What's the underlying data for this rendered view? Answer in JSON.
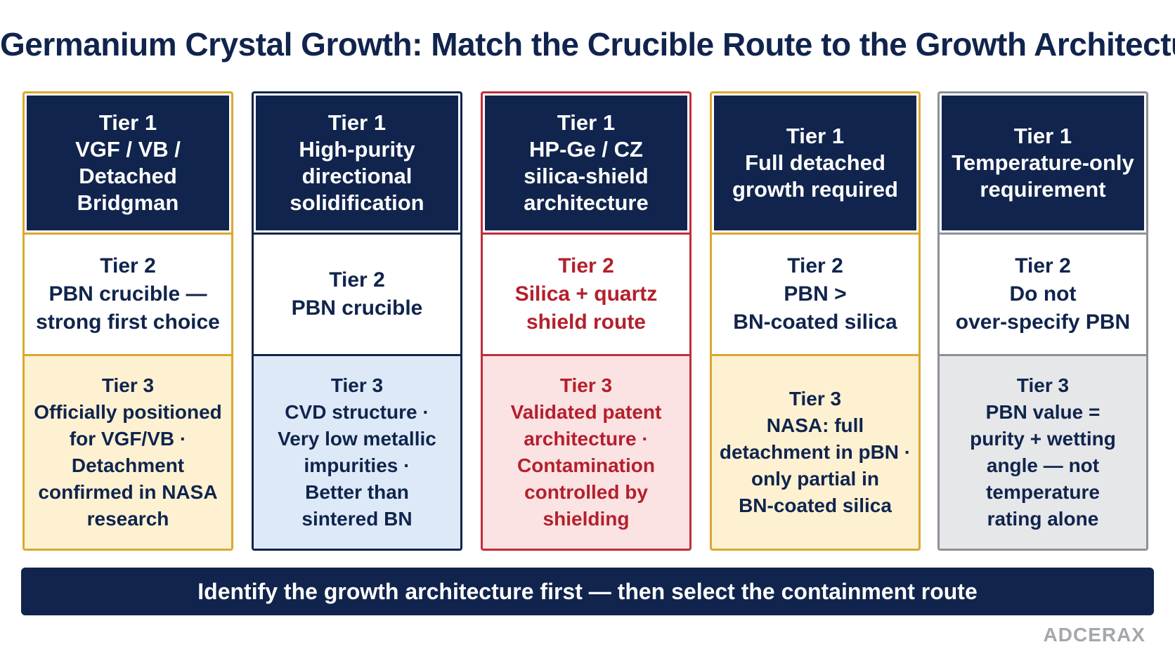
{
  "title": "Germanium Crystal Growth: Match the Crucible Route to the Growth Architecture",
  "columns": [
    {
      "tier1": {
        "heading": "Tier 1",
        "body": "VGF / VB /\nDetached Bridgman"
      },
      "tier2": {
        "heading": "Tier 2",
        "body": "PBN crucible —\nstrong first choice"
      },
      "tier3": {
        "heading": "Tier 3",
        "body": "Officially positioned\nfor VGF/VB ·\nDetachment\nconfirmed in NASA\nresearch"
      }
    },
    {
      "tier1": {
        "heading": "Tier 1",
        "body": "High-purity\ndirectional\nsolidification"
      },
      "tier2": {
        "heading": "Tier 2",
        "body": "PBN crucible"
      },
      "tier3": {
        "heading": "Tier 3",
        "body": "CVD structure ·\nVery low metallic\nimpurities ·\nBetter than\nsintered BN"
      }
    },
    {
      "tier1": {
        "heading": "Tier 1",
        "body": "HP-Ge / CZ\nsilica-shield\narchitecture"
      },
      "tier2": {
        "heading": "Tier 2",
        "body": "Silica + quartz\nshield route"
      },
      "tier3": {
        "heading": "Tier 3",
        "body": "Validated patent\narchitecture ·\nContamination\ncontrolled by\nshielding"
      }
    },
    {
      "tier1": {
        "heading": "Tier 1",
        "body": "Full detached\ngrowth required"
      },
      "tier2": {
        "heading": "Tier 2",
        "body": "PBN >\nBN-coated silica"
      },
      "tier3": {
        "heading": "Tier 3",
        "body": "NASA: full\ndetachment in pBN ·\nonly partial in\nBN-coated silica"
      }
    },
    {
      "tier1": {
        "heading": "Tier 1",
        "body": "Temperature-only\nrequirement"
      },
      "tier2": {
        "heading": "Tier 2",
        "body": "Do not\nover-specify PBN"
      },
      "tier3": {
        "heading": "Tier 3",
        "body": "PBN value =\npurity + wetting\nangle — not\ntemperature\nrating alone"
      }
    }
  ],
  "banner": "Identify the growth architecture first — then select the containment route",
  "brand": "ADCERAX",
  "colors": {
    "navy": "#10244d",
    "gold": "#d9a92f",
    "red": "#c12d3a",
    "gray": "#8c9096"
  }
}
